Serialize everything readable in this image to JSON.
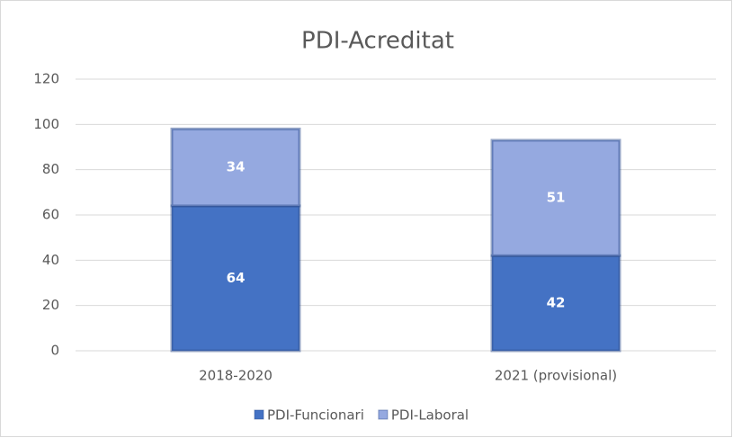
{
  "chart_data": {
    "type": "bar",
    "stacked": true,
    "title": "PDI-Acreditat",
    "categories": [
      "2018-2020",
      "2021 (provisional)"
    ],
    "series": [
      {
        "name": "PDI-Funcionari",
        "color": "#4472c4",
        "values": [
          64,
          42
        ]
      },
      {
        "name": "PDI-Laboral",
        "color": "#95a9e0",
        "values": [
          34,
          51
        ]
      }
    ],
    "ylim": [
      0,
      120
    ],
    "yticks": [
      0,
      20,
      40,
      60,
      80,
      100,
      120
    ],
    "grid": true,
    "legend": "bottom"
  }
}
